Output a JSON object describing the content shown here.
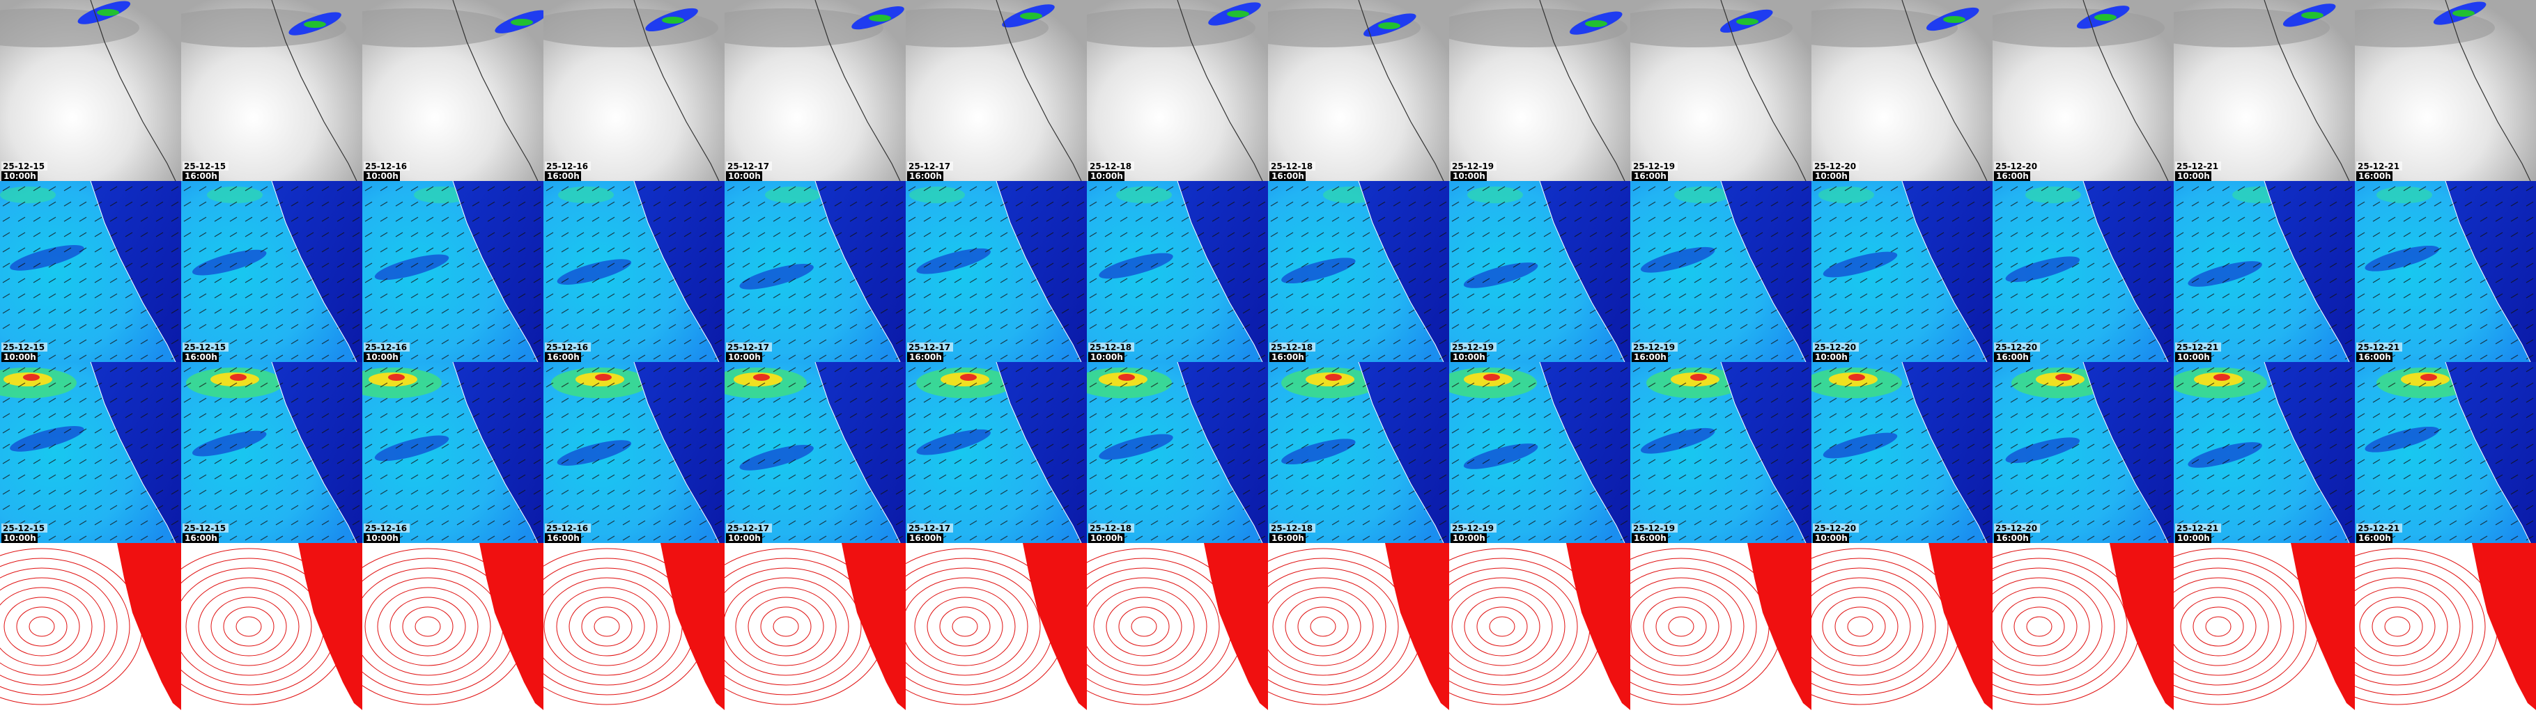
{
  "frames": [
    {
      "date": "25-12-15",
      "time": "10:00h"
    },
    {
      "date": "25-12-15",
      "time": "16:00h"
    },
    {
      "date": "25-12-16",
      "time": "10:00h"
    },
    {
      "date": "25-12-16",
      "time": "16:00h"
    },
    {
      "date": "25-12-17",
      "time": "10:00h"
    },
    {
      "date": "25-12-17",
      "time": "16:00h"
    },
    {
      "date": "25-12-18",
      "time": "10:00h"
    },
    {
      "date": "25-12-18",
      "time": "16:00h"
    },
    {
      "date": "25-12-19",
      "time": "10:00h"
    },
    {
      "date": "25-12-19",
      "time": "16:00h"
    },
    {
      "date": "25-12-20",
      "time": "10:00h"
    },
    {
      "date": "25-12-20",
      "time": "16:00h"
    },
    {
      "date": "25-12-21",
      "time": "10:00h"
    },
    {
      "date": "25-12-21",
      "time": "16:00h"
    }
  ]
}
